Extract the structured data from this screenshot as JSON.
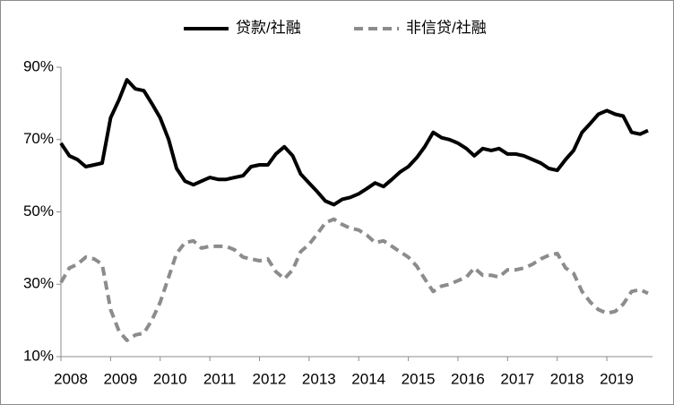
{
  "chart_data": {
    "type": "line",
    "x": [
      2008.0,
      2008.17,
      2008.33,
      2008.5,
      2008.67,
      2008.83,
      2009.0,
      2009.17,
      2009.33,
      2009.5,
      2009.67,
      2009.83,
      2010.0,
      2010.17,
      2010.33,
      2010.5,
      2010.67,
      2010.83,
      2011.0,
      2011.17,
      2011.33,
      2011.5,
      2011.67,
      2011.83,
      2012.0,
      2012.17,
      2012.33,
      2012.5,
      2012.67,
      2012.83,
      2013.0,
      2013.17,
      2013.33,
      2013.5,
      2013.67,
      2013.83,
      2014.0,
      2014.17,
      2014.33,
      2014.5,
      2014.67,
      2014.83,
      2015.0,
      2015.17,
      2015.33,
      2015.5,
      2015.67,
      2015.83,
      2016.0,
      2016.17,
      2016.33,
      2016.5,
      2016.67,
      2016.83,
      2017.0,
      2017.17,
      2017.33,
      2017.5,
      2017.67,
      2017.83,
      2018.0,
      2018.17,
      2018.33,
      2018.5,
      2018.67,
      2018.83,
      2019.0,
      2019.17,
      2019.33,
      2019.5,
      2019.67,
      2019.83
    ],
    "series": [
      {
        "name": "贷款/社融",
        "color": "#000000",
        "dash": false,
        "values": [
          69,
          65.5,
          64.5,
          62.5,
          63,
          63.5,
          76,
          81,
          86.5,
          84,
          83.5,
          80,
          76,
          70,
          62,
          58.5,
          57.5,
          58.5,
          59.5,
          59,
          59,
          59.5,
          60,
          62.5,
          63,
          63,
          66,
          68,
          65.5,
          60.5,
          58,
          55.5,
          53,
          52,
          53.5,
          54,
          55,
          56.5,
          58,
          57,
          59,
          61,
          62.5,
          65,
          68,
          72,
          70.5,
          70,
          69,
          67.5,
          65.5,
          67.5,
          67,
          67.5,
          66,
          66,
          65.5,
          64.5,
          63.5,
          62,
          61.5,
          64.5,
          67,
          72,
          74.5,
          77,
          78,
          77,
          76.5,
          72,
          71.5,
          72.5
        ]
      },
      {
        "name": "非信贷/社融",
        "color": "#8c8c8c",
        "dash": true,
        "values": [
          30.5,
          34.5,
          35.5,
          37.5,
          37,
          35.5,
          23,
          17,
          14.5,
          16,
          16.5,
          20,
          25,
          32,
          38.5,
          41.5,
          42,
          40,
          40.5,
          40.5,
          40.5,
          39.5,
          37.5,
          37,
          36.5,
          37,
          33.5,
          31.5,
          34,
          39,
          41,
          44,
          47,
          48,
          46.5,
          45.5,
          45,
          43.5,
          41.5,
          42,
          40.5,
          39,
          37.5,
          35,
          31.5,
          28,
          29.5,
          30,
          31,
          32,
          34.5,
          32.5,
          32.5,
          32,
          34,
          34,
          34.5,
          35.5,
          37,
          38,
          38.5,
          34.5,
          33,
          28,
          25,
          23,
          22,
          22.5,
          24.5,
          28,
          28.5,
          27.5
        ]
      }
    ],
    "xlim": [
      2008,
      2019.92
    ],
    "xticks": [
      2008,
      2009,
      2010,
      2011,
      2012,
      2013,
      2014,
      2015,
      2016,
      2017,
      2018,
      2019
    ],
    "ylim": [
      10,
      90
    ],
    "yticks": [
      {
        "value": 10,
        "label": "10%"
      },
      {
        "value": 30,
        "label": "30%"
      },
      {
        "value": 50,
        "label": "50%"
      },
      {
        "value": 70,
        "label": "70%"
      },
      {
        "value": 90,
        "label": "90%"
      }
    ],
    "legend": "top"
  }
}
